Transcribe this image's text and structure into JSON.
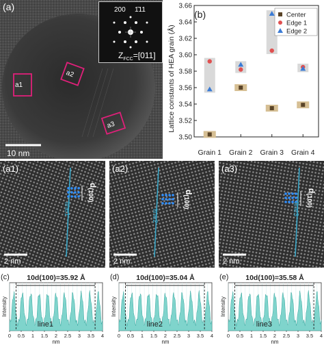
{
  "panel_a": {
    "label": "(a)",
    "scale_bar": "10 nm",
    "fft": {
      "spot_left": "200",
      "spot_right": "1̄11",
      "zone_prefix": "Z",
      "zone_sub": "FCC",
      "zone_value": "=[011]"
    },
    "regions": [
      "a1",
      "a2",
      "a3"
    ]
  },
  "panel_b": {
    "label": "(b)"
  },
  "chart_data": {
    "type": "scatter",
    "ylabel": "Lattice constants of  HEA grain (Å)",
    "xlabel": "",
    "categories": [
      "Grain 1",
      "Grain 2",
      "Grain 3",
      "Grain 4"
    ],
    "ylim": [
      3.5,
      3.66
    ],
    "yticks": [
      "3.50",
      "3.52",
      "3.54",
      "3.56",
      "3.58",
      "3.60",
      "3.62",
      "3.64",
      "3.66"
    ],
    "legend_position": "top-right",
    "series": [
      {
        "name": "Center",
        "marker": "square",
        "color": "#5a4428",
        "values": [
          3.503,
          3.56,
          3.535,
          3.539
        ]
      },
      {
        "name": "Edge 1",
        "marker": "circle",
        "color": "#e05050",
        "values": [
          3.592,
          3.582,
          3.605,
          3.585
        ]
      },
      {
        "name": "Edge 2",
        "marker": "triangle",
        "color": "#3a7bd5",
        "values": [
          3.558,
          3.588,
          3.65,
          3.583
        ]
      }
    ]
  },
  "hrtem_panels": [
    {
      "label": "(a1)",
      "d_label": "d",
      "d_sub": "(100)",
      "line": "line1",
      "scale": "2 nm"
    },
    {
      "label": "(a2)",
      "d_label": "d",
      "d_sub": "(100)",
      "line": "line2",
      "scale": "2 nm"
    },
    {
      "label": "(a3)",
      "d_label": "d",
      "d_sub": "(100)",
      "line": "line3",
      "scale": "2 nm"
    }
  ],
  "profile_panels": [
    {
      "label": "(c)",
      "measure": "10d(100)=35.92 Å",
      "line": "line1",
      "xlim": [
        0,
        4.0
      ],
      "xticks": [
        "0",
        "0.5",
        "1",
        "1.5",
        "2",
        "2.5",
        "3",
        "3.5",
        "4"
      ]
    },
    {
      "label": "(d)",
      "measure": "10d(100)=35.04 Å",
      "line": "line2",
      "xlim": [
        0,
        4.0
      ],
      "xticks": [
        "0",
        "0.5",
        "1",
        "1.5",
        "2",
        "2.5",
        "3",
        "3.5",
        "4"
      ]
    },
    {
      "label": "(e)",
      "measure": "10d(100)=35.58 Å",
      "line": "line3",
      "xlim": [
        0,
        4.0
      ],
      "xticks": [
        "0",
        "0.5",
        "1",
        "1.5",
        "2",
        "2.5",
        "3",
        "3.5",
        "4"
      ]
    }
  ],
  "profile_axes": {
    "ylabel": "Intensity",
    "xlabel": "nm"
  },
  "colors": {
    "line": "#3aa8c9",
    "profile_fill": "#7fd4cc",
    "region_box": "#e0207a",
    "fft_bg": "#111111"
  }
}
